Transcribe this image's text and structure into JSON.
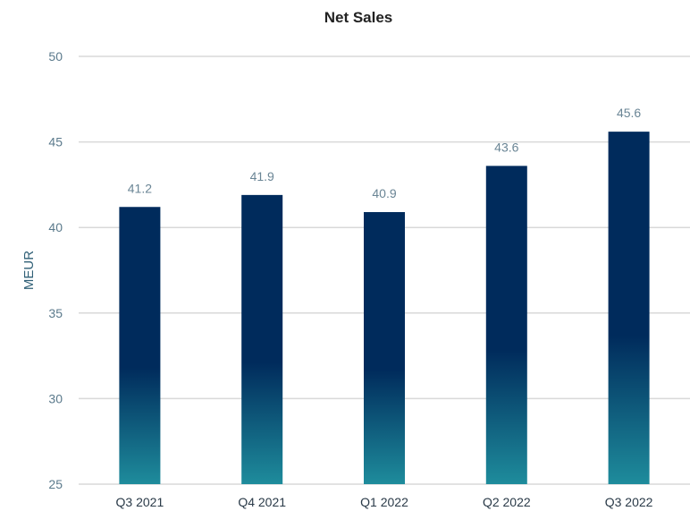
{
  "chart_data": {
    "type": "bar",
    "title": "Net Sales",
    "xlabel": "",
    "ylabel": "MEUR",
    "categories": [
      "Q3 2021",
      "Q4 2021",
      "Q1 2022",
      "Q2 2022",
      "Q3 2022"
    ],
    "values": [
      41.2,
      41.9,
      40.9,
      43.6,
      45.6
    ],
    "data_labels": [
      "41.2",
      "41.9",
      "40.9",
      "43.6",
      "45.6"
    ],
    "ylim": [
      25,
      50
    ],
    "yticks": [
      25,
      30,
      35,
      40,
      45,
      50
    ],
    "grid": true,
    "legend": "none",
    "colors": {
      "bar_top": "#002b5c",
      "bar_bottom": "#1e8c9c",
      "grid": "#d9d9d9"
    }
  }
}
